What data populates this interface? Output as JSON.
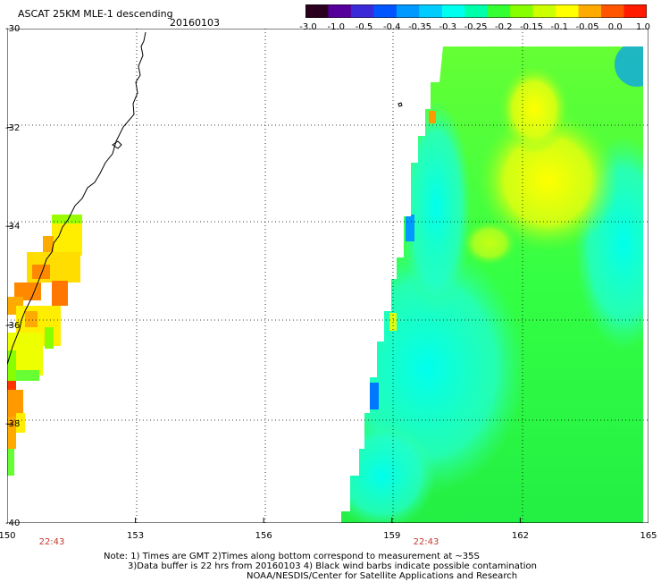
{
  "header": {
    "title": "ASCAT 25KM MLE-1 descending",
    "date": "20160103"
  },
  "colorbar": {
    "labels": [
      "-3.0",
      "-1.0",
      "-0.5",
      "-0.4",
      "-0.35",
      "-0.3",
      "-0.25",
      "-0.2",
      "-0.15",
      "-0.1",
      "-0.05",
      "0.0",
      "1.0"
    ],
    "colors": [
      "#2a001e",
      "#55009a",
      "#3a2ad8",
      "#0055ff",
      "#0099ff",
      "#00ccff",
      "#00ffee",
      "#00ffaa",
      "#33ff33",
      "#88ff00",
      "#ccff00",
      "#ffff00",
      "#ffaa00",
      "#ff5500",
      "#ff1a00"
    ]
  },
  "axes": {
    "lat_labels": [
      "-30",
      "-32",
      "-34",
      "-36",
      "-38",
      "-40"
    ],
    "lon_labels": [
      "150",
      "153",
      "156",
      "159",
      "162",
      "165"
    ]
  },
  "times": [
    "22:43",
    "22:43"
  ],
  "notes": [
    "Note: 1) Times are GMT 2)Times along bottom correspond to measurement at ~35S",
    "3)Data buffer is 22 hrs from 20160103 4) Black wind barbs indicate possible contamination",
    "NOAA/NESDIS/Center for Satellite Applications and Research"
  ]
}
